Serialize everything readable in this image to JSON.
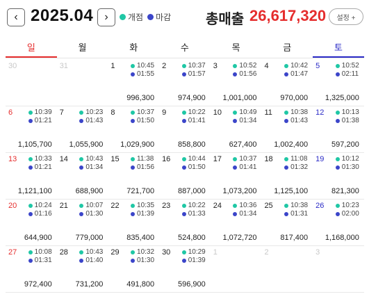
{
  "header": {
    "prev_icon": "‹",
    "next_icon": "›",
    "month": "2025.04",
    "legend": [
      {
        "label": "개점",
        "color": "#1fc7a5"
      },
      {
        "label": "마감",
        "color": "#3b45c9"
      }
    ],
    "total_label": "총매출",
    "total_value": "26,617,320",
    "settings_label": "설정 +"
  },
  "weekdays": [
    "일",
    "월",
    "화",
    "수",
    "목",
    "금",
    "토"
  ],
  "weeks": [
    [
      {
        "date": "30",
        "other": true
      },
      {
        "date": "31",
        "other": true
      },
      {
        "date": "1",
        "open": "10:45",
        "close": "01:55",
        "sales": "996,300"
      },
      {
        "date": "2",
        "open": "10:37",
        "close": "01:57",
        "sales": "974,900"
      },
      {
        "date": "3",
        "open": "10:52",
        "close": "01:56",
        "sales": "1,001,000"
      },
      {
        "date": "4",
        "open": "10:42",
        "close": "01:47",
        "sales": "970,000"
      },
      {
        "date": "5",
        "open": "10:52",
        "close": "02:11",
        "sales": "1,325,000"
      }
    ],
    [
      {
        "date": "6",
        "open": "10:39",
        "close": "01:21",
        "sales": "1,105,700"
      },
      {
        "date": "7",
        "open": "10:23",
        "close": "01:43",
        "sales": "1,055,900"
      },
      {
        "date": "8",
        "open": "10:37",
        "close": "01:50",
        "sales": "1,029,900"
      },
      {
        "date": "9",
        "open": "10:22",
        "close": "01:41",
        "sales": "858,800"
      },
      {
        "date": "10",
        "open": "10:49",
        "close": "01:34",
        "sales": "627,400"
      },
      {
        "date": "11",
        "open": "10:38",
        "close": "01:43",
        "sales": "1,002,400"
      },
      {
        "date": "12",
        "open": "10:13",
        "close": "01:38",
        "sales": "597,200"
      }
    ],
    [
      {
        "date": "13",
        "open": "10:33",
        "close": "01:21",
        "sales": "1,121,100"
      },
      {
        "date": "14",
        "open": "10:43",
        "close": "01:34",
        "sales": "688,900"
      },
      {
        "date": "15",
        "open": "11:38",
        "close": "01:56",
        "sales": "721,700"
      },
      {
        "date": "16",
        "open": "10:44",
        "close": "01:50",
        "sales": "887,000"
      },
      {
        "date": "17",
        "open": "10:37",
        "close": "01:41",
        "sales": "1,073,200"
      },
      {
        "date": "18",
        "open": "11:08",
        "close": "01:32",
        "sales": "1,125,100"
      },
      {
        "date": "19",
        "open": "10:12",
        "close": "01:30",
        "sales": "821,300"
      }
    ],
    [
      {
        "date": "20",
        "open": "10:24",
        "close": "01:16",
        "sales": "644,900"
      },
      {
        "date": "21",
        "open": "10:07",
        "close": "01:30",
        "sales": "779,000"
      },
      {
        "date": "22",
        "open": "10:35",
        "close": "01:39",
        "sales": "835,400"
      },
      {
        "date": "23",
        "open": "10:22",
        "close": "01:33",
        "sales": "524,800"
      },
      {
        "date": "24",
        "open": "10:36",
        "close": "01:34",
        "sales": "1,072,720"
      },
      {
        "date": "25",
        "open": "10:38",
        "close": "01:31",
        "sales": "817,400"
      },
      {
        "date": "26",
        "open": "10:23",
        "close": "02:00",
        "sales": "1,168,000"
      }
    ],
    [
      {
        "date": "27",
        "open": "10:08",
        "close": "01:31",
        "sales": "972,400"
      },
      {
        "date": "28",
        "open": "10:43",
        "close": "01:40",
        "sales": "731,200"
      },
      {
        "date": "29",
        "open": "10:32",
        "close": "01:30",
        "sales": "491,800"
      },
      {
        "date": "30",
        "open": "10:29",
        "close": "01:39",
        "sales": "596,900"
      },
      {
        "date": "1",
        "other": true
      },
      {
        "date": "2",
        "other": true
      },
      {
        "date": "3",
        "other": true
      }
    ]
  ]
}
